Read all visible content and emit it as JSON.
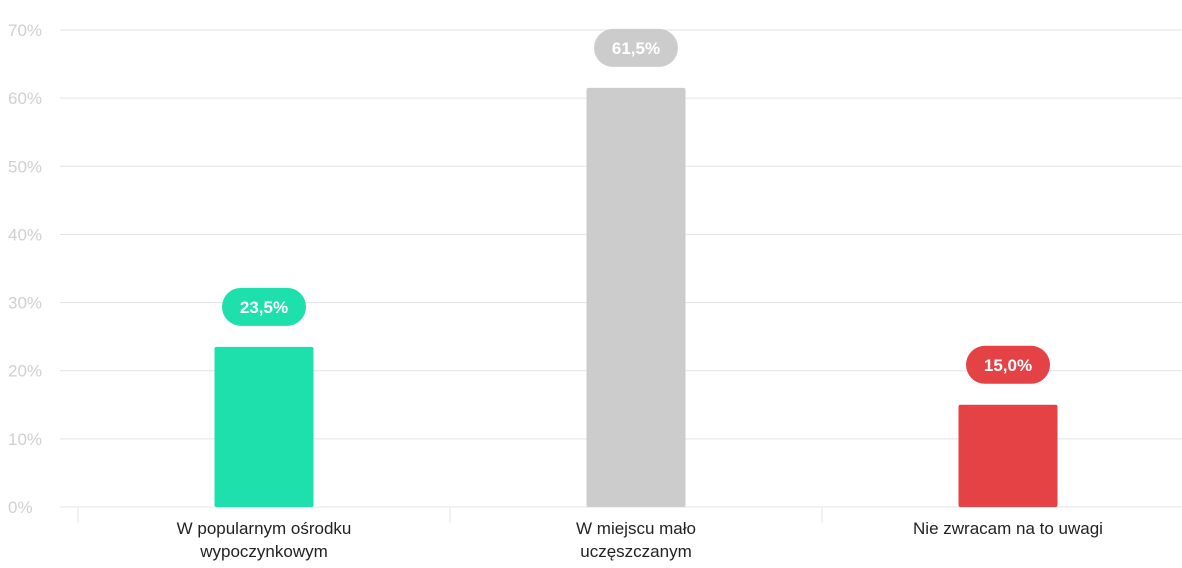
{
  "chart_data": {
    "type": "bar",
    "title": "",
    "xlabel": "",
    "ylabel": "",
    "ylim": [
      0,
      70
    ],
    "ytick_step": 10,
    "ytick_labels": [
      "0%",
      "10%",
      "20%",
      "30%",
      "40%",
      "50%",
      "60%",
      "70%"
    ],
    "grid": true,
    "categories": [
      [
        "W popularnym ośrodku",
        "wypoczynkowym"
      ],
      [
        "W miejscu mało",
        "uczęszczanym"
      ],
      [
        "Nie zwracam  na to uwagi"
      ]
    ],
    "values": [
      23.5,
      61.5,
      15.0
    ],
    "data_labels": [
      "23,5%",
      "61,5%",
      "15,0%"
    ],
    "colors": [
      "#1de0ad",
      "#cccccc",
      "#e44244"
    ]
  }
}
